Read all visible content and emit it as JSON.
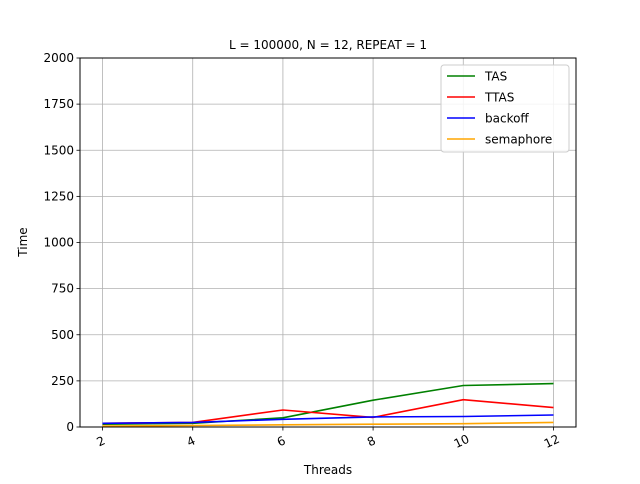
{
  "chart_data": {
    "type": "line",
    "title": "L = 100000, N = 12, REPEAT = 1",
    "xlabel": "Threads",
    "ylabel": "Time",
    "x": [
      2,
      4,
      6,
      8,
      10,
      12
    ],
    "xticks": [
      "2",
      "4",
      "6",
      "8",
      "10",
      "12"
    ],
    "yticks": [
      "0",
      "250",
      "500",
      "750",
      "1000",
      "1250",
      "1500",
      "1750",
      "2000"
    ],
    "xlim": [
      1.5,
      12.5
    ],
    "ylim": [
      0,
      2000
    ],
    "grid": true,
    "legend_position": "top-right",
    "series": [
      {
        "name": "TAS",
        "color": "#008000",
        "values": [
          15,
          20,
          50,
          145,
          225,
          235
        ]
      },
      {
        "name": "TTAS",
        "color": "#ff0000",
        "values": [
          20,
          25,
          92,
          52,
          148,
          105
        ]
      },
      {
        "name": "backoff",
        "color": "#0000ff",
        "values": [
          20,
          25,
          42,
          55,
          57,
          65
        ]
      },
      {
        "name": "semaphore",
        "color": "#ffa500",
        "values": [
          5,
          8,
          12,
          15,
          18,
          25
        ]
      }
    ]
  }
}
